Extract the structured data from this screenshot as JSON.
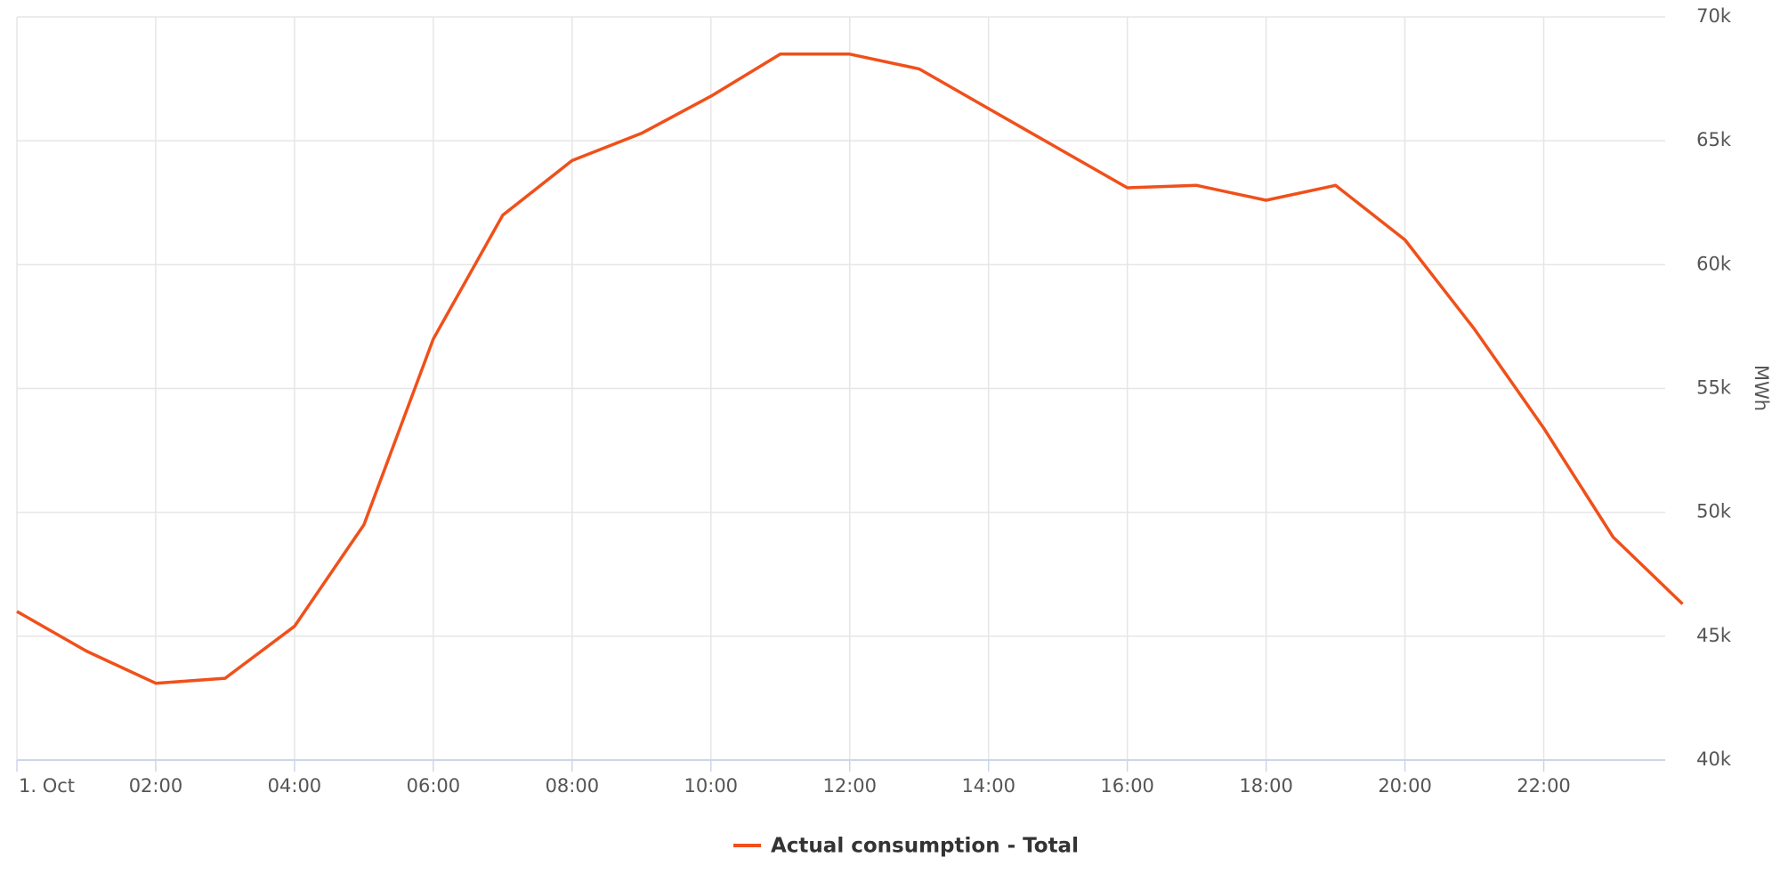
{
  "chart_data": {
    "type": "line",
    "x": [
      0,
      1,
      2,
      3,
      4,
      5,
      6,
      7,
      8,
      9,
      10,
      11,
      12,
      13,
      14,
      15,
      16,
      17,
      18,
      19,
      20,
      21,
      22,
      23,
      24
    ],
    "series": [
      {
        "name": "Actual consumption - Total",
        "color": "#f0501a",
        "values": [
          46000,
          44400,
          43100,
          43300,
          45400,
          49500,
          57000,
          62000,
          64200,
          65300,
          66800,
          68500,
          68500,
          67900,
          66300,
          64700,
          63100,
          63200,
          62600,
          63200,
          61000,
          57400,
          53400,
          49000,
          46300
        ]
      }
    ],
    "xlim": [
      0,
      23.75
    ],
    "xticks": [
      {
        "value": 0,
        "label": "1. Oct"
      },
      {
        "value": 2,
        "label": "02:00"
      },
      {
        "value": 4,
        "label": "04:00"
      },
      {
        "value": 6,
        "label": "06:00"
      },
      {
        "value": 8,
        "label": "08:00"
      },
      {
        "value": 10,
        "label": "10:00"
      },
      {
        "value": 12,
        "label": "12:00"
      },
      {
        "value": 14,
        "label": "14:00"
      },
      {
        "value": 16,
        "label": "16:00"
      },
      {
        "value": 18,
        "label": "18:00"
      },
      {
        "value": 20,
        "label": "20:00"
      },
      {
        "value": 22,
        "label": "22:00"
      }
    ],
    "ylim": [
      40000,
      70000
    ],
    "yticks": [
      {
        "value": 40000,
        "label": "40k"
      },
      {
        "value": 45000,
        "label": "45k"
      },
      {
        "value": 50000,
        "label": "50k"
      },
      {
        "value": 55000,
        "label": "55k"
      },
      {
        "value": 60000,
        "label": "60k"
      },
      {
        "value": 65000,
        "label": "65k"
      },
      {
        "value": 70000,
        "label": "70k"
      }
    ],
    "y_axis_label": "MWh",
    "grid": true
  }
}
